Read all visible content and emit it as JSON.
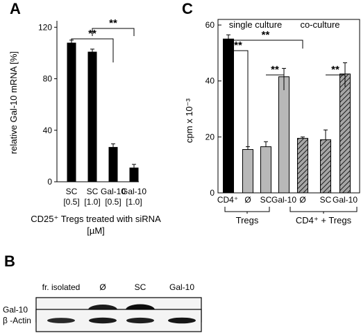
{
  "panels": {
    "A": "A",
    "B": "B",
    "C": "C"
  },
  "chart_data": [
    {
      "panel": "A",
      "type": "bar",
      "categories": [
        [
          "SC",
          "[0.5]"
        ],
        [
          "SC",
          "[1.0]"
        ],
        [
          "Gal-10",
          "[0.5]"
        ],
        [
          "Gal-10",
          "[1.0]"
        ]
      ],
      "values": [
        108,
        101,
        27,
        11
      ],
      "errors": [
        2,
        2,
        2.5,
        2.5
      ],
      "bar_color": "#000000",
      "ylabel": "relative Gal-10 mRNA [%]",
      "xlabel_lines": [
        "CD25⁺ Tregs treated with siRNA",
        "[µM]"
      ],
      "ylim": [
        0,
        125
      ],
      "yticks": [
        0,
        40,
        80,
        120
      ],
      "grid": false,
      "significance": [
        {
          "from": 0,
          "to": 2,
          "label": "**"
        },
        {
          "from": 1,
          "to": 3,
          "label": "**"
        }
      ]
    },
    {
      "panel": "C",
      "type": "bar",
      "categories": [
        "CD4⁺",
        "Ø",
        "SC",
        "Gal-10",
        "Ø",
        "SC",
        "Gal-10"
      ],
      "values": [
        55,
        15.5,
        16.5,
        41.5,
        19.5,
        19,
        42.5
      ],
      "errors": [
        1.5,
        1,
        1.8,
        3,
        0.5,
        3.5,
        4
      ],
      "styles": [
        "solid-black",
        "gray",
        "gray",
        "gray",
        "hatched",
        "hatched",
        "hatched"
      ],
      "colors": {
        "solid-black": "#000000",
        "gray": "#b8b8b8",
        "hatched": "#a6a6a6"
      },
      "ylabel": "cpm x 10⁻³",
      "ylim": [
        0,
        62
      ],
      "yticks": [
        0,
        20,
        40,
        60
      ],
      "group_labels": [
        "single culture",
        "co-culture"
      ],
      "bracket_labels": [
        "Tregs",
        "CD4⁺ + Tregs"
      ],
      "grid": false,
      "significance": [
        {
          "from": 0,
          "to": 1,
          "label": "**"
        },
        {
          "from": 2,
          "to": 3,
          "label": "**"
        },
        {
          "from": 0,
          "to": 4,
          "label": "**"
        },
        {
          "from": 5,
          "to": 6,
          "label": "**"
        }
      ]
    }
  ],
  "blot": {
    "lanes": [
      "fr. isolated",
      "Ø",
      "SC",
      "Gal-10"
    ],
    "rows": [
      {
        "label": "Gal-10",
        "bands": [
          0,
          0.85,
          1.0,
          0
        ]
      },
      {
        "label": "β -Actin",
        "bands": [
          0.7,
          0.85,
          0.8,
          0.9
        ]
      }
    ]
  }
}
